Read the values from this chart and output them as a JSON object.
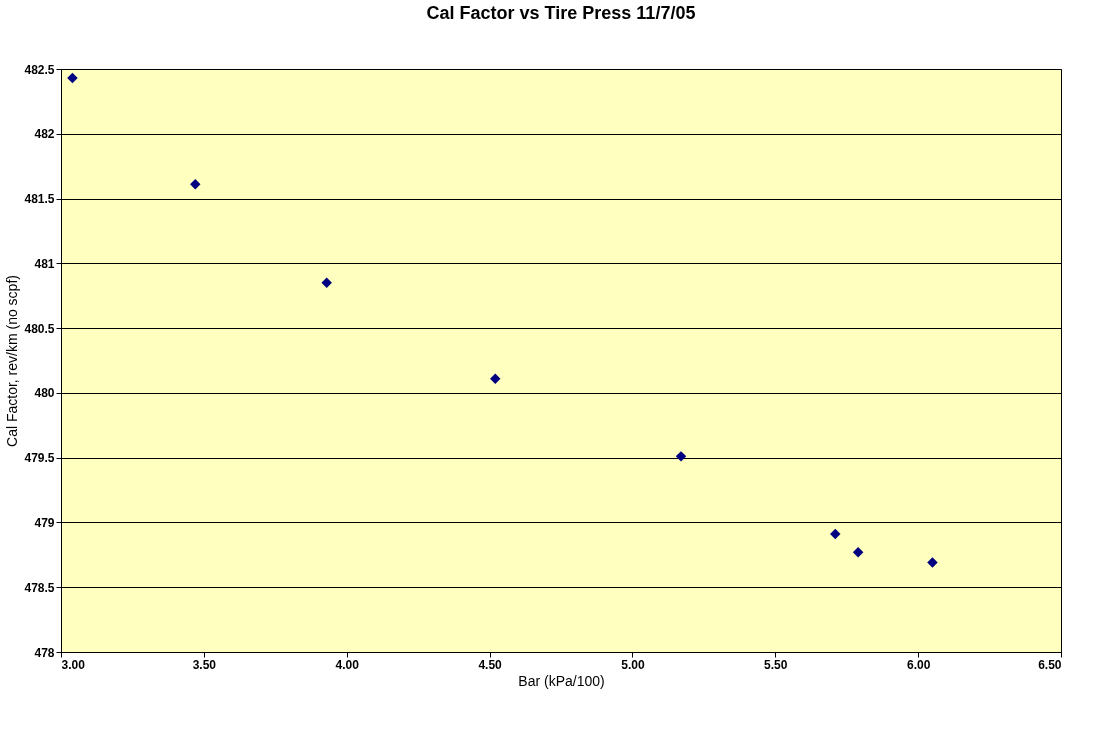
{
  "chart_data": {
    "type": "scatter",
    "title": "Cal Factor vs Tire Press 11/7/05",
    "xlabel": "Bar (kPa/100)",
    "ylabel": "Cal Factor, rev/km (no scpf)",
    "x": [
      3.04,
      3.47,
      3.93,
      4.52,
      5.17,
      5.71,
      5.79,
      6.05
    ],
    "series": [
      {
        "color": "#000080",
        "values": [
          482.43,
          481.61,
          480.85,
          480.11,
          479.51,
          478.91,
          478.77,
          478.69
        ]
      }
    ],
    "xlim": [
      3.0,
      6.5
    ],
    "xticks": [
      {
        "value": 3.0,
        "label": "3.00"
      },
      {
        "value": 3.5,
        "label": "3.50"
      },
      {
        "value": 4.0,
        "label": "4.00"
      },
      {
        "value": 4.5,
        "label": "4.50"
      },
      {
        "value": 5.0,
        "label": "5.00"
      },
      {
        "value": 5.5,
        "label": "5.50"
      },
      {
        "value": 6.0,
        "label": "6.00"
      },
      {
        "value": 6.5,
        "label": "6.50"
      }
    ],
    "ylim": [
      478,
      482.5
    ],
    "yticks": [
      478,
      478.5,
      479,
      479.5,
      480,
      480.5,
      481,
      481.5,
      482,
      482.5
    ],
    "grid": "y",
    "marker": "diamond",
    "legend": false
  }
}
